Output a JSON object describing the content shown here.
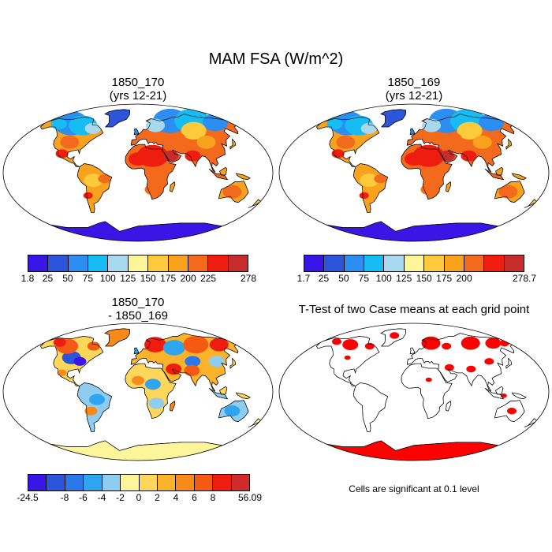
{
  "title": "MAM FSA (W/m^2)",
  "panels": [
    {
      "title_line1": "1850_170",
      "title_line2": "(yrs 12-21)",
      "type": "absolute"
    },
    {
      "title_line1": "1850_169",
      "title_line2": "(yrs 12-21)",
      "type": "absolute"
    },
    {
      "title_line1": "1850_170",
      "title_line2": "- 1850_169",
      "type": "difference"
    },
    {
      "title_line1": "T-Test of two Case means at each grid point",
      "title_line2": "",
      "type": "ttest"
    }
  ],
  "colorbar_abs": {
    "colors": [
      "#3a16e6",
      "#2c55dc",
      "#2b8ef0",
      "#17bdf2",
      "#a8d8ee",
      "#fdf59a",
      "#fdca3c",
      "#f9a21e",
      "#f46a1c",
      "#ef1c10",
      "#c72c2c"
    ]
  },
  "colorbar_labels_1": [
    "1.8",
    "25",
    "50",
    "75",
    "100",
    "125",
    "150",
    "175",
    "200",
    "225",
    "278"
  ],
  "colorbar_labels_2": [
    "1.7",
    "25",
    "50",
    "75",
    "100",
    "125",
    "150",
    "175",
    "200",
    "",
    "278.7"
  ],
  "colorbar_diff": {
    "colors": [
      "#3a16e6",
      "#2c55dc",
      "#2b78ea",
      "#2fa5f0",
      "#8fcdf0",
      "#fdf59a",
      "#fdd65a",
      "#fcb32c",
      "#f98a1a",
      "#f45a14",
      "#ef1c10",
      "#d02a2a"
    ],
    "labels": [
      "-24.5",
      "-8",
      "-6",
      "-4",
      "-2",
      "0",
      "2",
      "4",
      "6",
      "8",
      "56.09"
    ]
  },
  "significance_note": "Cells are significant at 0.1 level"
}
